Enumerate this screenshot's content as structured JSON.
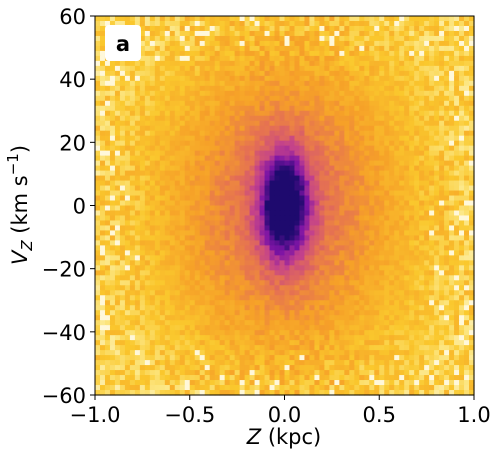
{
  "chart_data": {
    "type": "heatmap",
    "panel_label": "a",
    "xlabel_var": "Z",
    "xlabel_unit": " (kpc)",
    "ylabel_var": "V",
    "ylabel_sub": "Z",
    "ylabel_unit": " (km s",
    "ylabel_exp": "−1",
    "ylabel_close": ")",
    "xlim": [
      -1.0,
      1.0
    ],
    "ylim": [
      -60,
      60
    ],
    "x_ticks": [
      -1.0,
      -0.5,
      0.0,
      0.5,
      1.0
    ],
    "x_tick_labels": [
      "−1.0",
      "−0.5",
      "0.0",
      "0.5",
      "1.0"
    ],
    "y_ticks": [
      -60,
      -40,
      -20,
      0,
      20,
      40,
      60
    ],
    "y_tick_labels": [
      "−60",
      "−40",
      "−20",
      "0",
      "20",
      "40",
      "60"
    ],
    "grid": false,
    "colormap": "plasma_r",
    "colors": {
      "low": "#fff7d6",
      "mid": "#f7b62c",
      "high": "#3a0790",
      "peak": "#1b0a6e"
    },
    "density_model": {
      "center": [
        0.0,
        0.0
      ],
      "core_sigma_z": 0.09,
      "core_sigma_v": 12,
      "halo_sigma_z": 0.45,
      "halo_sigma_v": 35,
      "bins_x": 76,
      "bins_y": 76
    }
  }
}
